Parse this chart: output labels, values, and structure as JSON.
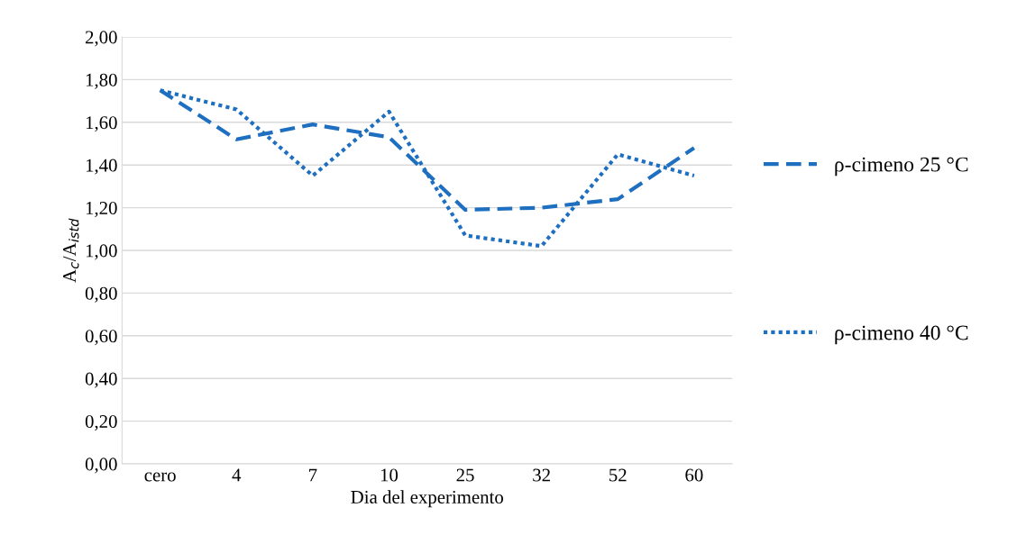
{
  "chart_data": {
    "type": "line",
    "xlabel": "Dia del experimento",
    "ylabel": "A$_{c}$/A$_{istd}$",
    "categories": [
      "cero",
      "4",
      "7",
      "10",
      "25",
      "32",
      "52",
      "60"
    ],
    "series": [
      {
        "name": "ρ-cimeno 25 °C",
        "color": "#1f6fc0",
        "line_style": "dashed",
        "values": [
          1.75,
          1.52,
          1.59,
          1.53,
          1.19,
          1.2,
          1.24,
          1.48
        ]
      },
      {
        "name": "ρ-cimeno 40 °C",
        "color": "#1f6fc0",
        "line_style": "dotted",
        "values": [
          1.75,
          1.66,
          1.35,
          1.65,
          1.07,
          1.02,
          1.45,
          1.35
        ]
      }
    ],
    "ylim": [
      0,
      2
    ],
    "yticks": [
      {
        "value": 0,
        "label": "0,00"
      },
      {
        "value": 0.2,
        "label": "0,20"
      },
      {
        "value": 0.4,
        "label": "0,40"
      },
      {
        "value": 0.6,
        "label": "0,60"
      },
      {
        "value": 0.8,
        "label": "0,80"
      },
      {
        "value": 1.0,
        "label": "1,00"
      },
      {
        "value": 1.2,
        "label": "1,20"
      },
      {
        "value": 1.4,
        "label": "1,40"
      },
      {
        "value": 1.6,
        "label": "1,60"
      },
      {
        "value": 1.8,
        "label": "1,80"
      },
      {
        "value": 2.0,
        "label": "2,00"
      }
    ],
    "grid": "y",
    "legend": "right",
    "marker": "none"
  }
}
